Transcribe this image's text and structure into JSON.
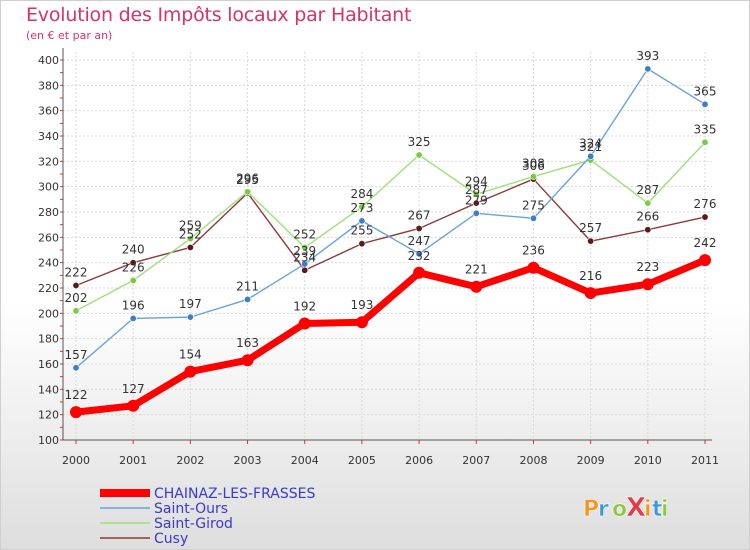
{
  "chart_data": {
    "type": "line",
    "title": "Evolution des Impôts locaux par Habitant",
    "subtitle": "(en € et par an)",
    "xlabel": "",
    "ylabel": "",
    "ylim": [
      100,
      400
    ],
    "ytick_step": 20,
    "categories": [
      "2000",
      "2001",
      "2002",
      "2003",
      "2004",
      "2005",
      "2006",
      "2007",
      "2008",
      "2009",
      "2010",
      "2011"
    ],
    "series": [
      {
        "name": "CHAINAZ-LES-FRASSES",
        "color": "#ff0000",
        "values": [
          122,
          127,
          154,
          163,
          192,
          193,
          232,
          221,
          236,
          216,
          223,
          242
        ]
      },
      {
        "name": "Saint-Ours",
        "color": "#6aa3d8",
        "marker": "#3b7fc4",
        "values": [
          157,
          196,
          197,
          211,
          239,
          273,
          247,
          279,
          275,
          324,
          393,
          365
        ]
      },
      {
        "name": "Saint-Girod",
        "color": "#9de07a",
        "marker": "#77cc44",
        "values": [
          202,
          226,
          259,
          296,
          252,
          284,
          325,
          294,
          308,
          321,
          287,
          335
        ]
      },
      {
        "name": "Cusy",
        "color": "#8b3a3a",
        "marker": "#5a1a1a",
        "values": [
          222,
          240,
          252,
          295,
          234,
          255,
          267,
          287,
          306,
          257,
          266,
          276
        ]
      }
    ],
    "data_labels": [
      [
        "122",
        "127",
        "154",
        "163",
        "192",
        "193",
        "232",
        "221",
        "236",
        "216",
        "223",
        "242"
      ],
      [
        "157",
        "196",
        "197",
        "211",
        "239",
        "273",
        "247",
        "279",
        "275",
        "324",
        "393",
        "365"
      ],
      [
        "202",
        "226",
        "259",
        "296",
        "252",
        "284",
        "325",
        "294",
        "308",
        "321",
        "287",
        "335"
      ],
      [
        "222",
        "240",
        "252",
        "295",
        "234",
        "255",
        "267",
        "287",
        "306",
        "257",
        "266",
        "276"
      ]
    ],
    "grid": true,
    "legend_position": "bottom-left"
  },
  "logo": {
    "text": "ProXiti",
    "colors": [
      "#f7941d",
      "#3a9ad9",
      "#8dc63f",
      "#e63946"
    ]
  }
}
